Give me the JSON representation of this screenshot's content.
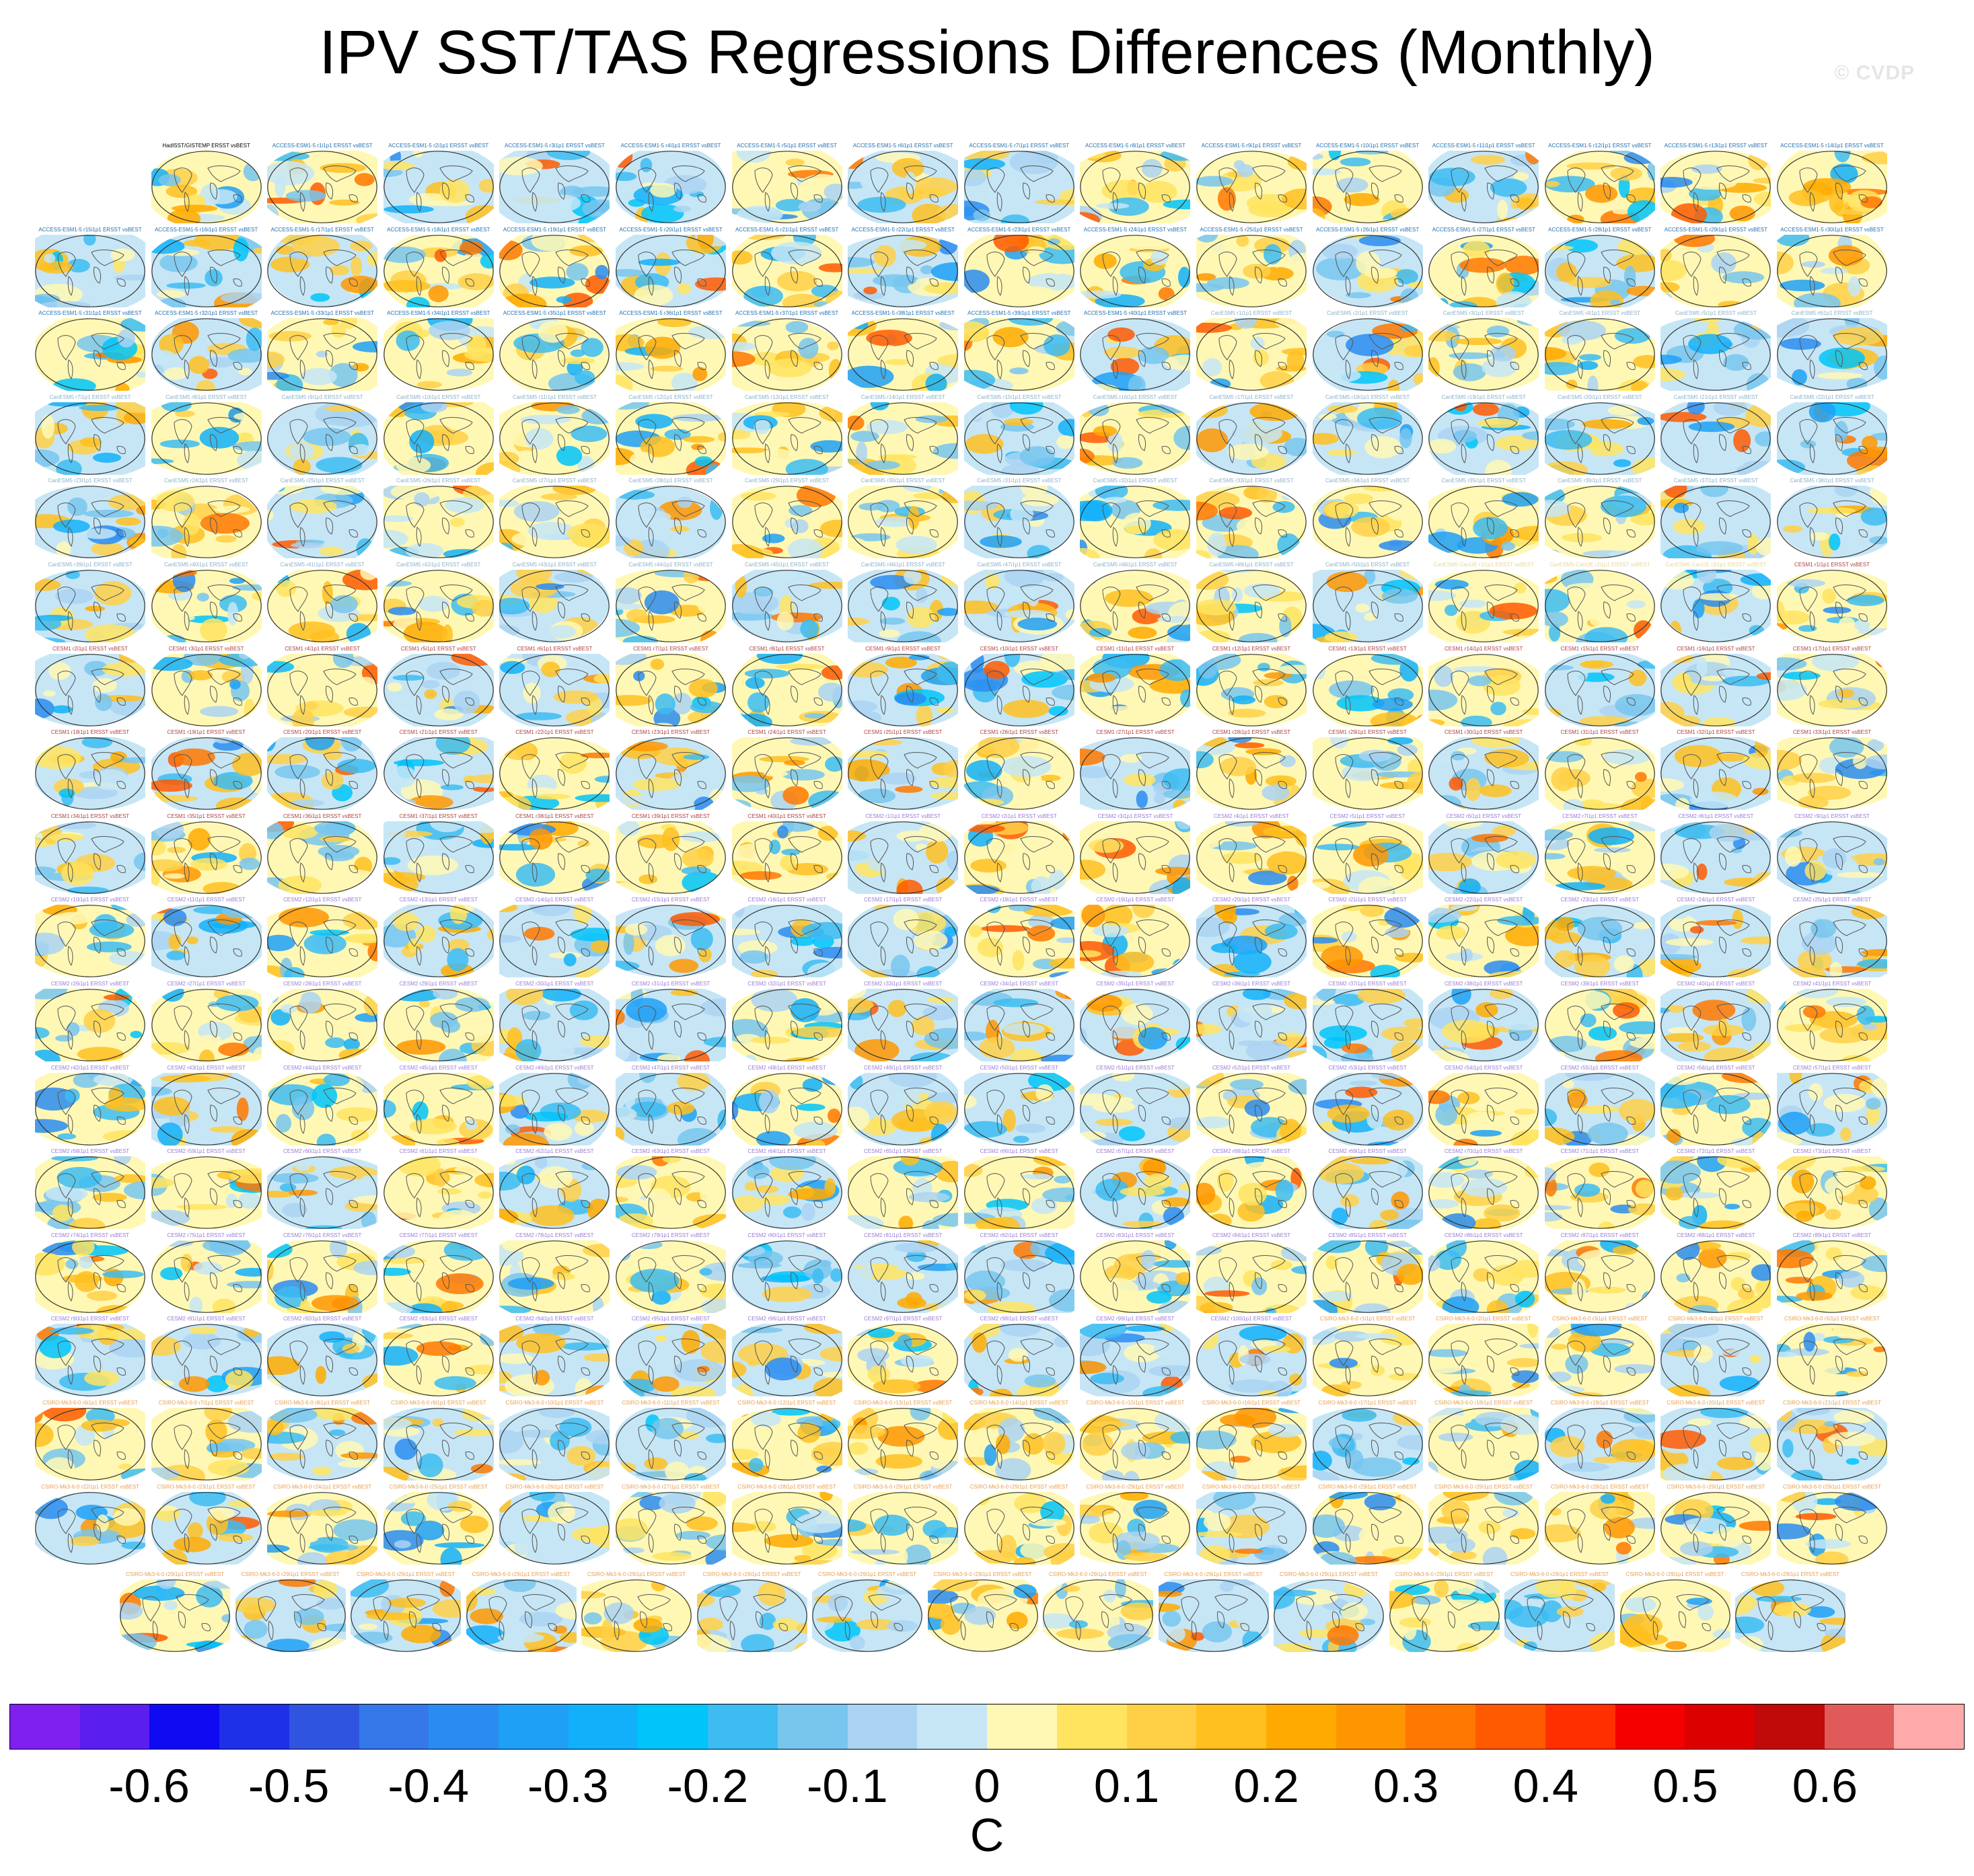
{
  "title": "IPV SST/TAS Regressions Differences (Monthly)",
  "watermark": "© CVDP",
  "first_panel_label": [
    "HadISST/GISTEMP",
    "ERSST vsBEST"
  ],
  "panel_groups": [
    {
      "model": "ACCESS-ESM1-5",
      "count": 40,
      "color": "#1f6fb0"
    },
    {
      "model": "CanESM5",
      "count": 50,
      "color": "#8ab0c8"
    },
    {
      "model": "CanESM5-CanOE",
      "count": 3,
      "color": "#e8d79a"
    },
    {
      "model": "CESM1",
      "count": 40,
      "color": "#b04040"
    },
    {
      "model": "CESM2",
      "count": 100,
      "color": "#9a7ad8"
    },
    {
      "model": "CSIRO-Mk3-6-0",
      "count": 29,
      "color": "#e8a050"
    }
  ],
  "panel_suffix": "ERSST vsBEST",
  "colorbar": {
    "colors": [
      "#7f20ef",
      "#5a1eef",
      "#0f0af2",
      "#1e30e8",
      "#2f55e0",
      "#3478ea",
      "#2a8cf0",
      "#1ea0f6",
      "#12b0fa",
      "#00c4fa",
      "#3cbcf2",
      "#78c6ee",
      "#aad4f2",
      "#c6e6f6",
      "#fff8b4",
      "#ffe460",
      "#ffd046",
      "#ffc020",
      "#ffaa00",
      "#ff9600",
      "#ff7800",
      "#ff5a00",
      "#ff3000",
      "#f40000",
      "#dc0000",
      "#c00a0a",
      "#e05a5a",
      "#ffaaaa"
    ],
    "ticks": [
      "-0.6",
      "-0.5",
      "-0.4",
      "-0.3",
      "-0.2",
      "-0.1",
      "0",
      "0.1",
      "0.2",
      "0.3",
      "0.4",
      "0.5",
      "0.6"
    ],
    "unit": "C"
  }
}
